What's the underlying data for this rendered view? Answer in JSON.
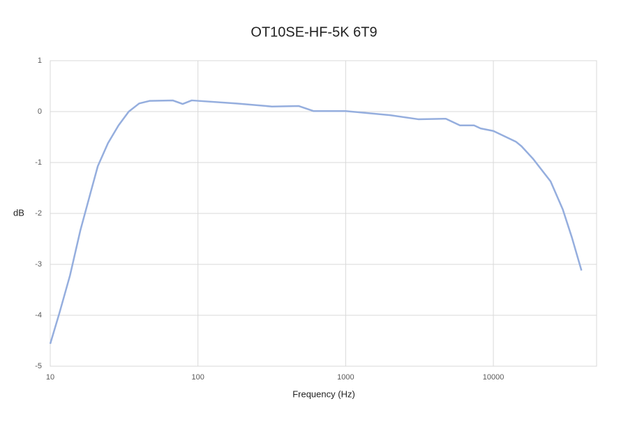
{
  "chart_data": {
    "type": "line",
    "title": "OT10SE-HF-5K 6T9",
    "x_label": "Frequency (Hz)",
    "y_label": "dB",
    "x_log": true,
    "grid": true,
    "xlim": [
      10,
      50000
    ],
    "xticks": [
      10,
      100,
      1000,
      10000
    ],
    "ylim": [
      -5,
      1
    ],
    "yticks": [
      -5,
      -4,
      -3,
      -2,
      -1,
      0,
      1
    ],
    "x": [
      10,
      11.5,
      13.6,
      16,
      18.8,
      21,
      24.6,
      29,
      34,
      40,
      47,
      67.5,
      78.8,
      90.7,
      183,
      317,
      480,
      608,
      1000,
      2000,
      3100,
      4770,
      5940,
      7400,
      8200,
      10000,
      14200,
      15500,
      18600,
      24400,
      29500,
      34000,
      39500
    ],
    "series": [
      {
        "color": "#95aede",
        "values": [
          -4.56,
          -3.97,
          -3.22,
          -2.33,
          -1.58,
          -1.07,
          -0.62,
          -0.27,
          0,
          0.16,
          0.21,
          0.22,
          0.15,
          0.22,
          0.16,
          0.1,
          0.11,
          0.01,
          0.01,
          -0.07,
          -0.15,
          -0.14,
          -0.27,
          -0.27,
          -0.33,
          -0.38,
          -0.59,
          -0.68,
          -0.93,
          -1.37,
          -1.92,
          -2.47,
          -3.12
        ]
      }
    ]
  }
}
